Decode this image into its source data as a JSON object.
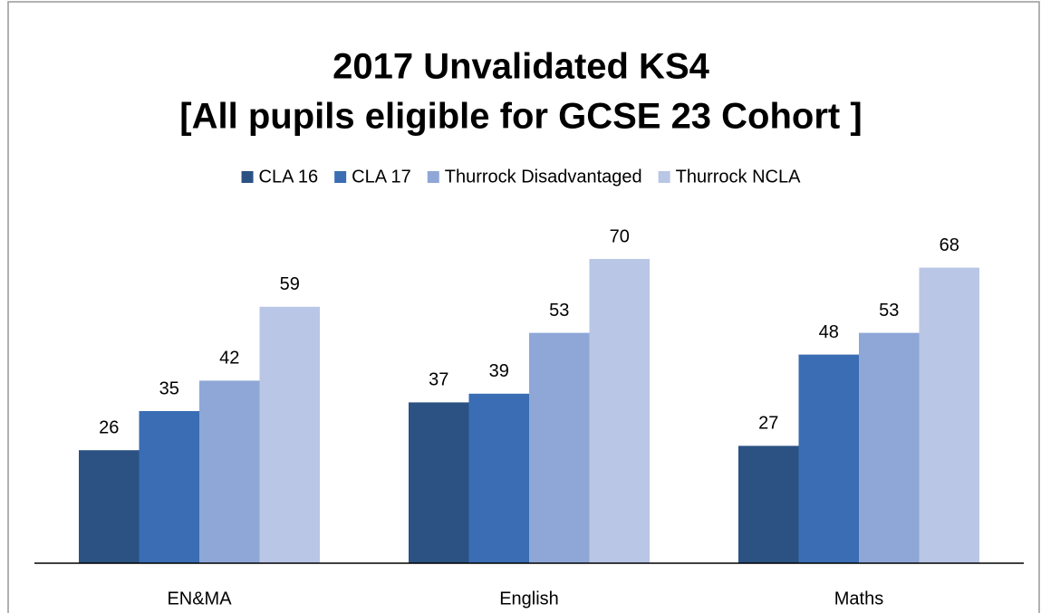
{
  "chart_data": {
    "type": "bar",
    "title": [
      "2017 Unvalidated KS4",
      "[All pupils eligible for GCSE 23 Cohort ]"
    ],
    "categories": [
      "EN&MA",
      "English",
      "Maths"
    ],
    "series": [
      {
        "name": "CLA 16",
        "color": "#2b5283",
        "values": [
          26,
          37,
          27
        ]
      },
      {
        "name": "CLA 17",
        "color": "#3a6db3",
        "values": [
          35,
          39,
          48
        ]
      },
      {
        "name": "Thurrock Disadvantaged",
        "color": "#8ea7d6",
        "values": [
          42,
          53,
          53
        ]
      },
      {
        "name": "Thurrock NCLA",
        "color": "#b9c6e5",
        "values": [
          59,
          70,
          68
        ]
      }
    ],
    "ylim": [
      0,
      80
    ],
    "legend": "top"
  }
}
